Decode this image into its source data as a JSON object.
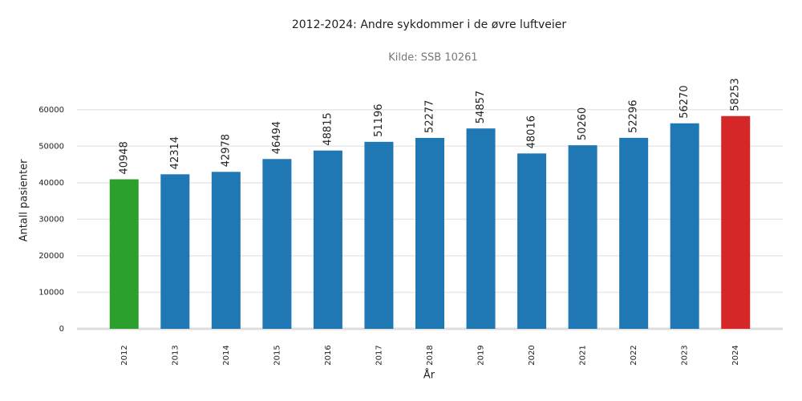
{
  "chart_data": {
    "type": "bar",
    "title": "2012-2024: Andre sykdommer i de øvre luftveier",
    "subtitle": "Kilde: SSB 10261",
    "y_label": "Antall pasienter",
    "x_label": "År",
    "categories": [
      "2012",
      "2013",
      "2014",
      "2015",
      "2016",
      "2017",
      "2018",
      "2019",
      "2020",
      "2021",
      "2022",
      "2023",
      "2024"
    ],
    "values": [
      40948,
      42314,
      42978,
      46494,
      48815,
      51196,
      52277,
      54857,
      48016,
      50260,
      52296,
      56270,
      58253
    ],
    "colors": [
      "#2ca02c",
      "#1f77b4",
      "#1f77b4",
      "#1f77b4",
      "#1f77b4",
      "#1f77b4",
      "#1f77b4",
      "#1f77b4",
      "#1f77b4",
      "#1f77b4",
      "#1f77b4",
      "#1f77b4",
      "#d62728"
    ],
    "ylim": [
      0,
      65000
    ],
    "yticks": [
      0,
      10000,
      20000,
      30000,
      40000,
      50000,
      60000
    ],
    "grid": true
  }
}
